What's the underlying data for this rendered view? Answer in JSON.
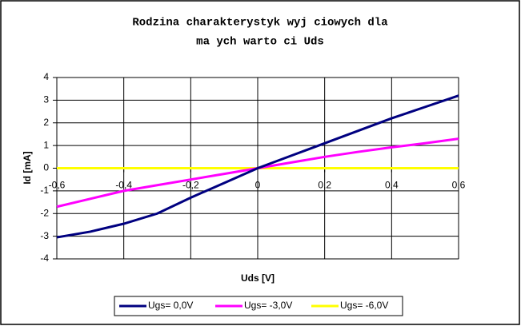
{
  "chart_data": {
    "type": "line",
    "title": [
      "Rodzina charakterystyk wyj ciowych dla",
      "ma ych warto ci Uds"
    ],
    "x_label": "Uds [V]",
    "y_label": "Id [mA]",
    "x": [
      -0.6,
      -0.5,
      -0.4,
      -0.3,
      -0.2,
      -0.1,
      0,
      0.1,
      0.2,
      0.3,
      0.4,
      0.5,
      0.6
    ],
    "series": [
      {
        "name": "Ugs= 0,0V",
        "color": "#000080",
        "values": [
          -3.05,
          -2.8,
          -2.45,
          -2.0,
          -1.3,
          -0.65,
          0,
          0.55,
          1.1,
          1.65,
          2.2,
          2.7,
          3.2
        ]
      },
      {
        "name": "Ugs= -3,0V",
        "color": "#ff00ff",
        "values": [
          -1.7,
          -1.35,
          -1.0,
          -0.75,
          -0.5,
          -0.25,
          0,
          0.25,
          0.5,
          0.72,
          0.92,
          1.1,
          1.3
        ]
      },
      {
        "name": "Ugs= -6,0V",
        "color": "#ffff00",
        "values": [
          0,
          0,
          0,
          0,
          0,
          0,
          0,
          0,
          0,
          0,
          0,
          0,
          0
        ]
      }
    ],
    "xlim": [
      -0.6,
      0.6
    ],
    "xticks": [
      {
        "value": -0.6,
        "label": "-0,6"
      },
      {
        "value": -0.4,
        "label": "-0,4"
      },
      {
        "value": -0.2,
        "label": "-0,2"
      },
      0,
      {
        "value": 0.2,
        "label": "0,2"
      },
      {
        "value": 0.4,
        "label": "0,4"
      },
      {
        "value": 0.6,
        "label": "0,6"
      }
    ],
    "ylim": [
      -4,
      4
    ],
    "yticks": [
      -4,
      -3,
      -2,
      -1,
      0,
      1,
      2,
      3,
      4
    ],
    "grid": true,
    "legend": "bottom"
  }
}
